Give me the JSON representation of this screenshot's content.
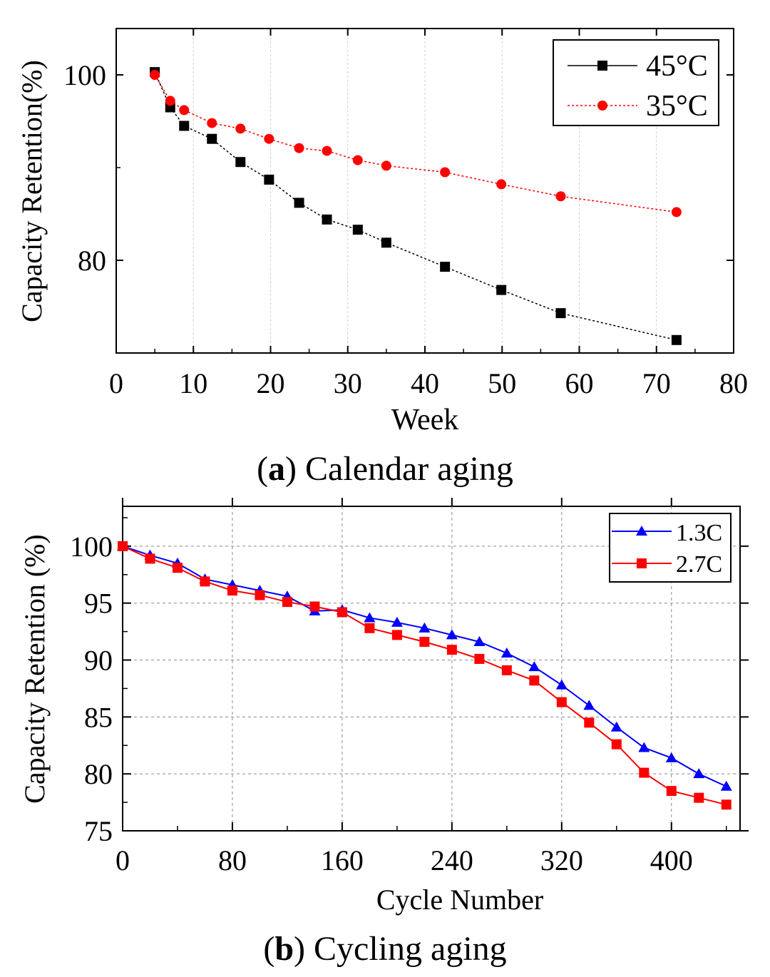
{
  "chart_data": [
    {
      "type": "line",
      "xlabel": "Week",
      "ylabel": "Capacity Retention(%)",
      "xlim": [
        0,
        80
      ],
      "ylim": [
        70,
        105
      ],
      "x_ticks": [
        "0",
        "10",
        "20",
        "30",
        "40",
        "50",
        "60",
        "70",
        "80"
      ],
      "y_ticks": [
        "80",
        "100"
      ],
      "grid": "vertical dashed",
      "legend_position": "top-right",
      "series": [
        {
          "name": "45°C",
          "color": "#000000",
          "marker": "square",
          "x": [
            5,
            7,
            8.8,
            12.4,
            16.1,
            19.8,
            23.7,
            27.3,
            31.3,
            35,
            42.6,
            49.9,
            57.6,
            72.6
          ],
          "y": [
            100.3,
            96.5,
            94.5,
            93.1,
            90.6,
            88.7,
            86.2,
            84.4,
            83.3,
            81.9,
            79.3,
            76.8,
            74.3,
            71.4
          ]
        },
        {
          "name": "35°C",
          "color": "#ff0000",
          "marker": "circle",
          "x": [
            5,
            7,
            8.8,
            12.4,
            16.1,
            19.8,
            23.7,
            27.3,
            31.3,
            35,
            42.6,
            49.9,
            57.6,
            72.6
          ],
          "y": [
            100,
            97.2,
            96.2,
            94.8,
            94.2,
            93.1,
            92.1,
            91.8,
            90.8,
            90.2,
            89.5,
            88.2,
            86.9,
            85.2
          ]
        }
      ],
      "caption_label": "a",
      "caption_text": " Calendar aging"
    },
    {
      "type": "line",
      "xlabel": "Cycle Number",
      "ylabel": "Capacity Retention (%)",
      "xlim": [
        0,
        450
      ],
      "ylim": [
        75,
        103.5
      ],
      "x_ticks": [
        "0",
        "80",
        "160",
        "240",
        "320",
        "400"
      ],
      "y_ticks": [
        "75",
        "80",
        "85",
        "90",
        "95",
        "100"
      ],
      "grid": "dashed",
      "legend_position": "top-right",
      "series": [
        {
          "name": "1.3C",
          "color": "#0000ff",
          "marker": "triangle",
          "x": [
            0,
            20,
            40,
            60,
            80,
            100,
            120,
            140,
            160,
            180,
            200,
            220,
            240,
            260,
            280,
            300,
            320,
            340,
            360,
            380,
            400,
            420,
            440
          ],
          "y": [
            100,
            99.2,
            98.5,
            97.1,
            96.6,
            96.1,
            95.6,
            94.3,
            94.4,
            93.7,
            93.3,
            92.8,
            92.2,
            91.6,
            90.6,
            89.4,
            87.8,
            86.0,
            84.1,
            82.3,
            81.4,
            80.0,
            78.9
          ]
        },
        {
          "name": "2.7C",
          "color": "#ff0000",
          "marker": "square",
          "x": [
            0,
            20,
            40,
            60,
            80,
            100,
            120,
            140,
            160,
            180,
            200,
            220,
            240,
            260,
            280,
            300,
            320,
            340,
            360,
            380,
            400,
            420,
            440
          ],
          "y": [
            100,
            98.9,
            98.1,
            96.9,
            96.1,
            95.7,
            95.1,
            94.7,
            94.2,
            92.8,
            92.2,
            91.6,
            90.9,
            90.1,
            89.1,
            88.2,
            86.3,
            84.5,
            82.6,
            80.1,
            78.5,
            77.9,
            77.3
          ]
        }
      ],
      "caption_label": "b",
      "caption_text": " Cycling aging"
    }
  ]
}
